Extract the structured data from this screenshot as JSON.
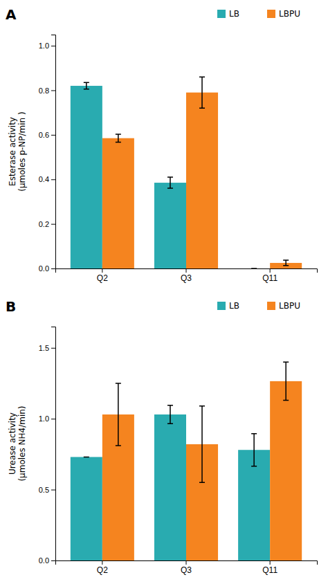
{
  "chart_data": [
    {
      "type": "bar",
      "title": "A",
      "categories": [
        "Q2",
        "Q3",
        "Q11"
      ],
      "series": [
        {
          "name": "LB",
          "color": "#29ABB0",
          "values": [
            0.82,
            0.385,
            0.0
          ],
          "errors": [
            0.015,
            0.025,
            0.0
          ]
        },
        {
          "name": "LBPU",
          "color": "#F5841F",
          "values": [
            0.585,
            0.79,
            0.025
          ],
          "errors": [
            0.018,
            0.07,
            0.012
          ]
        }
      ],
      "ylabel": "Esterase activity\n(µmoles p-NP/min )",
      "ylim": [
        0,
        1.05
      ],
      "yticks": [
        {
          "value": 0.0,
          "label": "0.0"
        },
        0.2,
        0.4,
        0.6,
        0.8,
        {
          "value": 1.0,
          "label": "1.0"
        }
      ],
      "legend": "upper right"
    },
    {
      "type": "bar",
      "title": "B",
      "categories": [
        "Q2",
        "Q3",
        "Q11"
      ],
      "series": [
        {
          "name": "LB",
          "color": "#29ABB0",
          "values": [
            0.73,
            1.03,
            0.78
          ],
          "errors": [
            0.0,
            0.065,
            0.115
          ]
        },
        {
          "name": "LBPU",
          "color": "#F5841F",
          "values": [
            1.03,
            0.82,
            1.265
          ],
          "errors": [
            0.22,
            0.27,
            0.135
          ]
        }
      ],
      "ylabel": "Urease activity\n(µmoles NH4/min)",
      "ylim": [
        0,
        1.65
      ],
      "yticks": [
        {
          "value": 0.0,
          "label": "0.0"
        },
        0.5,
        {
          "value": 1.0,
          "label": "1.0"
        },
        1.5
      ],
      "legend": "upper right"
    }
  ]
}
